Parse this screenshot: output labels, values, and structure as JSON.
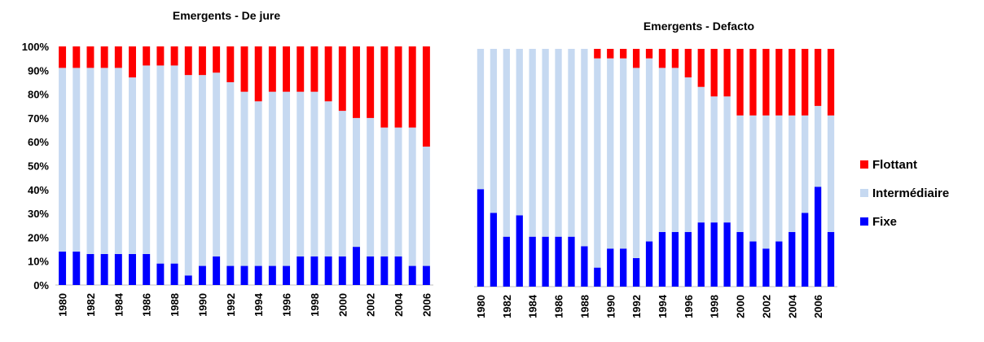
{
  "legend": {
    "entries": [
      {
        "label": "Flottant",
        "color": "#ff0000"
      },
      {
        "label": "Intermédiaire",
        "color": "#c6d9f1"
      },
      {
        "label": "Fixe",
        "color": "#0000ff"
      }
    ],
    "placement": "right"
  },
  "chart_data": [
    {
      "type": "bar",
      "stacked": true,
      "title": "Emergents - De jure",
      "xlabel": "",
      "ylabel": "",
      "ylim": [
        0,
        100
      ],
      "yticks": [
        "0%",
        "10%",
        "20%",
        "30%",
        "40%",
        "50%",
        "60%",
        "70%",
        "80%",
        "90%",
        "100%"
      ],
      "categories": [
        "1980",
        "1981",
        "1982",
        "1983",
        "1984",
        "1985",
        "1986",
        "1987",
        "1988",
        "1989",
        "1990",
        "1991",
        "1992",
        "1993",
        "1994",
        "1995",
        "1996",
        "1997",
        "1998",
        "1999",
        "2000",
        "2001",
        "2002",
        "2003",
        "2004",
        "2005",
        "2006"
      ],
      "x_tick_labels": [
        "1980",
        "1982",
        "1984",
        "1986",
        "1988",
        "1990",
        "1992",
        "1994",
        "1996",
        "1998",
        "2000",
        "2002",
        "2004",
        "2006"
      ],
      "series": [
        {
          "name": "Fixe",
          "values": [
            14,
            14,
            13,
            13,
            13,
            13,
            13,
            9,
            9,
            4,
            8,
            12,
            8,
            8,
            8,
            8,
            8,
            12,
            12,
            12,
            12,
            16,
            12,
            12,
            12,
            8,
            8
          ]
        },
        {
          "name": "Intermédiaire",
          "values": [
            77,
            77,
            78,
            78,
            78,
            74,
            79,
            83,
            83,
            84,
            80,
            77,
            77,
            73,
            69,
            73,
            73,
            69,
            69,
            65,
            61,
            54,
            58,
            54,
            54,
            58,
            50
          ]
        },
        {
          "name": "Flottant",
          "values": [
            9,
            9,
            9,
            9,
            9,
            13,
            8,
            8,
            8,
            12,
            12,
            11,
            15,
            19,
            23,
            19,
            19,
            19,
            19,
            23,
            27,
            30,
            30,
            34,
            34,
            34,
            42
          ]
        }
      ]
    },
    {
      "type": "bar",
      "stacked": true,
      "title": "Emergents - Defacto",
      "xlabel": "",
      "ylabel": "",
      "ylim": [
        0,
        100
      ],
      "categories": [
        "1980",
        "1981",
        "1982",
        "1983",
        "1984",
        "1985",
        "1986",
        "1987",
        "1988",
        "1989",
        "1990",
        "1991",
        "1992",
        "1993",
        "1994",
        "1995",
        "1996",
        "1997",
        "1998",
        "1999",
        "2000",
        "2001",
        "2002",
        "2003",
        "2004",
        "2005",
        "2006",
        "2007"
      ],
      "x_tick_labels": [
        "1980",
        "1982",
        "1984",
        "1986",
        "1988",
        "1990",
        "1992",
        "1994",
        "1996",
        "1998",
        "2000",
        "2002",
        "2004",
        "2006"
      ],
      "series": [
        {
          "name": "Fixe",
          "values": [
            41,
            31,
            21,
            30,
            21,
            21,
            21,
            21,
            17,
            8,
            16,
            16,
            12,
            19,
            23,
            23,
            23,
            27,
            27,
            27,
            23,
            19,
            16,
            19,
            23,
            31,
            42,
            23
          ]
        },
        {
          "name": "Intermédiaire",
          "values": [
            59,
            69,
            79,
            70,
            79,
            79,
            79,
            79,
            83,
            88,
            80,
            80,
            80,
            77,
            69,
            69,
            65,
            57,
            53,
            53,
            49,
            53,
            56,
            53,
            49,
            41,
            34,
            49
          ]
        },
        {
          "name": "Flottant",
          "values": [
            0,
            0,
            0,
            0,
            0,
            0,
            0,
            0,
            0,
            4,
            4,
            4,
            8,
            4,
            8,
            8,
            12,
            16,
            20,
            20,
            28,
            28,
            28,
            28,
            28,
            28,
            24,
            28
          ]
        }
      ]
    }
  ]
}
